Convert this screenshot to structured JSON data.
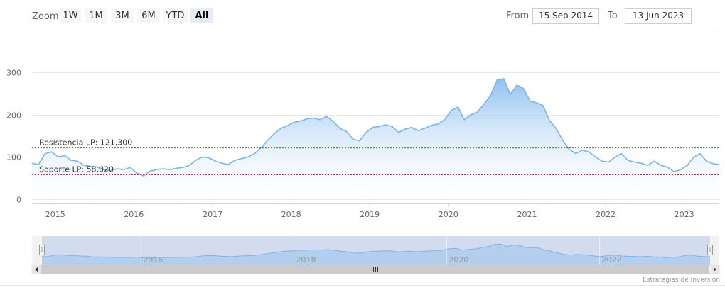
{
  "range_selector": {
    "zoom_label": "Zoom",
    "buttons": [
      {
        "label": "1W",
        "selected": false
      },
      {
        "label": "1M",
        "selected": false
      },
      {
        "label": "3M",
        "selected": false
      },
      {
        "label": "6M",
        "selected": false
      },
      {
        "label": "YTD",
        "selected": false
      },
      {
        "label": "All",
        "selected": true
      }
    ],
    "from_label": "From",
    "from_value": "15 Sep 2014",
    "to_label": "To",
    "to_value": "13 Jun 2023"
  },
  "credit": "Estrategias de Inversión",
  "colors": {
    "series_line": "#7cb5ec",
    "resistance_line": "#2e7d32",
    "support_line": "#b71c1c",
    "navigator_fill": "#c8d4ee"
  },
  "navigator": {
    "labels": [
      "2016",
      "2018",
      "2020",
      "2022"
    ]
  },
  "chart_data": {
    "type": "area",
    "title": "",
    "xlabel": "",
    "ylabel": "",
    "ylim": [
      0,
      300
    ],
    "yticks": [
      0,
      100,
      200,
      300
    ],
    "xticks": [
      "2015",
      "2016",
      "2017",
      "2018",
      "2019",
      "2020",
      "2021",
      "2022",
      "2023"
    ],
    "grid": true,
    "x_range": [
      "2014-09-15",
      "2023-06-13"
    ],
    "series": [
      {
        "x": [
          "2014-09-15",
          "2014-10-15",
          "2014-11-15",
          "2014-12-15",
          "2015-01-15",
          "2015-02-15",
          "2015-03-15",
          "2015-04-15",
          "2015-05-15",
          "2015-06-15",
          "2015-07-15",
          "2015-08-15",
          "2015-09-15",
          "2015-10-15",
          "2015-11-15",
          "2015-12-15",
          "2016-01-15",
          "2016-02-15",
          "2016-03-15",
          "2016-04-15",
          "2016-05-15",
          "2016-06-15",
          "2016-07-15",
          "2016-08-15",
          "2016-09-15",
          "2016-10-15",
          "2016-11-15",
          "2016-12-15",
          "2017-01-15",
          "2017-02-15",
          "2017-03-15",
          "2017-04-15",
          "2017-05-15",
          "2017-06-15",
          "2017-07-15",
          "2017-08-15",
          "2017-09-15",
          "2017-10-15",
          "2017-11-15",
          "2017-12-15",
          "2018-01-15",
          "2018-02-15",
          "2018-03-15",
          "2018-04-15",
          "2018-05-15",
          "2018-06-15",
          "2018-07-15",
          "2018-08-15",
          "2018-09-15",
          "2018-10-15",
          "2018-11-15",
          "2018-12-15",
          "2019-01-15",
          "2019-02-15",
          "2019-03-15",
          "2019-04-15",
          "2019-05-15",
          "2019-06-15",
          "2019-07-15",
          "2019-08-15",
          "2019-09-15",
          "2019-10-15",
          "2019-11-15",
          "2019-12-15",
          "2020-01-15",
          "2020-02-15",
          "2020-03-15",
          "2020-04-15",
          "2020-05-15",
          "2020-06-15",
          "2020-07-15",
          "2020-08-15",
          "2020-09-15",
          "2020-10-15",
          "2020-11-15",
          "2020-12-15",
          "2021-01-15",
          "2021-02-15",
          "2021-03-15",
          "2021-04-15",
          "2021-05-15",
          "2021-06-15",
          "2021-07-15",
          "2021-08-15",
          "2021-09-15",
          "2021-10-15",
          "2021-11-15",
          "2021-12-15",
          "2022-01-15",
          "2022-02-15",
          "2022-03-15",
          "2022-04-15",
          "2022-05-15",
          "2022-06-15",
          "2022-07-15",
          "2022-08-15",
          "2022-09-15",
          "2022-10-15",
          "2022-11-15",
          "2022-12-15",
          "2023-01-15",
          "2023-02-15",
          "2023-03-15",
          "2023-04-15",
          "2023-05-15",
          "2023-06-13"
        ],
        "values": [
          85,
          82,
          108,
          112,
          100,
          103,
          92,
          90,
          80,
          78,
          76,
          70,
          68,
          72,
          70,
          75,
          62,
          55,
          66,
          70,
          72,
          70,
          73,
          75,
          80,
          92,
          100,
          98,
          90,
          85,
          82,
          92,
          96,
          100,
          108,
          122,
          140,
          155,
          168,
          174,
          182,
          185,
          190,
          192,
          188,
          196,
          184,
          168,
          160,
          142,
          138,
          158,
          170,
          172,
          176,
          172,
          158,
          166,
          170,
          162,
          168,
          175,
          178,
          188,
          210,
          218,
          188,
          200,
          206,
          225,
          245,
          282,
          285,
          248,
          270,
          262,
          232,
          228,
          222,
          186,
          168,
          140,
          118,
          108,
          116,
          112,
          100,
          90,
          88,
          100,
          108,
          92,
          88,
          85,
          80,
          90,
          80,
          76,
          65,
          70,
          80,
          100,
          108,
          90,
          84,
          82
        ]
      }
    ],
    "annotations": [
      {
        "label": "Resistencia LP: 121,300",
        "value": 121.3
      },
      {
        "label": "Soporte LP: 58,020",
        "value": 58.02
      }
    ]
  }
}
